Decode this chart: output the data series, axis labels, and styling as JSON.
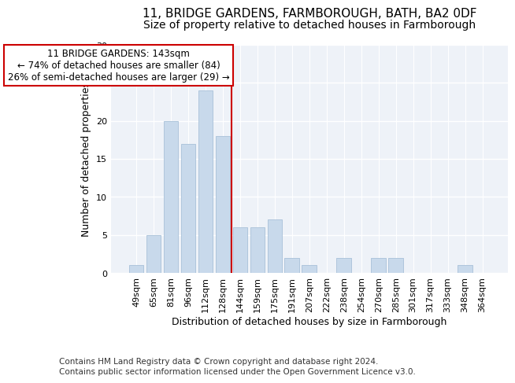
{
  "title_line1": "11, BRIDGE GARDENS, FARMBOROUGH, BATH, BA2 0DF",
  "title_line2": "Size of property relative to detached houses in Farmborough",
  "xlabel": "Distribution of detached houses by size in Farmborough",
  "ylabel": "Number of detached properties",
  "categories": [
    "49sqm",
    "65sqm",
    "81sqm",
    "96sqm",
    "112sqm",
    "128sqm",
    "144sqm",
    "159sqm",
    "175sqm",
    "191sqm",
    "207sqm",
    "222sqm",
    "238sqm",
    "254sqm",
    "270sqm",
    "285sqm",
    "301sqm",
    "317sqm",
    "333sqm",
    "348sqm",
    "364sqm"
  ],
  "values": [
    1,
    5,
    20,
    17,
    24,
    18,
    6,
    6,
    7,
    2,
    1,
    0,
    2,
    0,
    2,
    2,
    0,
    0,
    0,
    1,
    0
  ],
  "bar_color": "#c8d9eb",
  "bar_edgecolor": "#a8c0d8",
  "background_color": "#eef2f8",
  "grid_color": "#ffffff",
  "vline_x_index": 5.5,
  "vline_color": "#cc0000",
  "annotation_box": {
    "text_line1": "11 BRIDGE GARDENS: 143sqm",
    "text_line2": "← 74% of detached houses are smaller (84)",
    "text_line3": "26% of semi-detached houses are larger (29) →",
    "box_color": "#ffffff",
    "box_edgecolor": "#cc0000"
  },
  "ylim": [
    0,
    30
  ],
  "yticks": [
    0,
    5,
    10,
    15,
    20,
    25,
    30
  ],
  "footnote_line1": "Contains HM Land Registry data © Crown copyright and database right 2024.",
  "footnote_line2": "Contains public sector information licensed under the Open Government Licence v3.0.",
  "title_fontsize": 11,
  "subtitle_fontsize": 10,
  "axis_label_fontsize": 9,
  "tick_fontsize": 8,
  "annotation_fontsize": 8.5,
  "footnote_fontsize": 7.5
}
